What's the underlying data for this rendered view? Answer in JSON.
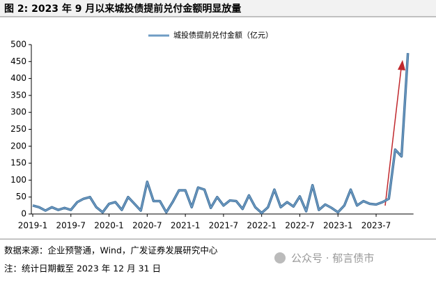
{
  "chart_data": {
    "type": "line",
    "title": "图 2: 2023 年 9 月以来城投债提前兑付金额明显放量",
    "categories": [
      "2019-1",
      null,
      null,
      null,
      null,
      null,
      "2019-7",
      null,
      null,
      null,
      null,
      null,
      "2020-1",
      null,
      null,
      null,
      null,
      null,
      "2020-7",
      null,
      null,
      null,
      null,
      null,
      "2021-1",
      null,
      null,
      null,
      null,
      null,
      "2021-7",
      null,
      null,
      null,
      null,
      null,
      "2022-1",
      null,
      null,
      null,
      null,
      null,
      "2022-7",
      null,
      null,
      null,
      null,
      null,
      "2023-1",
      null,
      null,
      null,
      null,
      null,
      "2023-7",
      null,
      null,
      null,
      null,
      null
    ],
    "series": [
      {
        "name": "城投债提前兑付金额（亿元）",
        "color": "#6f9cc4",
        "values": [
          25,
          20,
          10,
          20,
          12,
          18,
          12,
          35,
          45,
          50,
          20,
          5,
          30,
          35,
          12,
          50,
          30,
          10,
          95,
          38,
          38,
          5,
          35,
          70,
          70,
          20,
          78,
          72,
          18,
          50,
          25,
          40,
          38,
          15,
          55,
          20,
          3,
          20,
          72,
          20,
          35,
          22,
          52,
          8,
          85,
          12,
          28,
          18,
          5,
          25,
          72,
          25,
          38,
          30,
          28,
          35,
          45,
          190,
          170,
          475
        ]
      }
    ],
    "ylim": [
      0,
      500
    ],
    "yticks": [
      0,
      50,
      100,
      150,
      200,
      250,
      300,
      350,
      400,
      450,
      500
    ],
    "legend": "top",
    "source": "数据来源：企业预警通，Wind，广发证券发展研究中心",
    "note": "注：统计日期截至 2023 年 12 月 31 日",
    "watermark": "公众号 · 郁言债市"
  }
}
